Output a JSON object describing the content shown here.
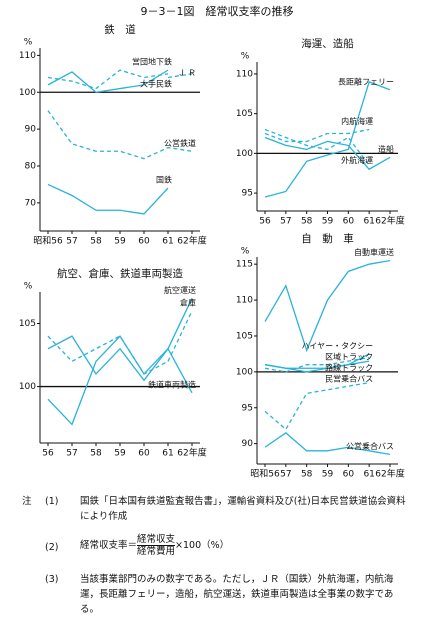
{
  "figure_title": "9－3－1図　経常収支率の推移",
  "chart_data": [
    {
      "type": "line",
      "title": "鉄　道",
      "y_unit": "%",
      "categories": [
        "昭和56",
        "57",
        "58",
        "59",
        "60",
        "61",
        "62年度"
      ],
      "ylim": [
        64,
        112
      ],
      "yticks": [
        70,
        80,
        90,
        100,
        110
      ],
      "hline": 100,
      "series": [
        {
          "name": "営団地下鉄",
          "color": "#29b3d8",
          "dash": false,
          "values": [
            102,
            105.5,
            100,
            101,
            102,
            106,
            null
          ]
        },
        {
          "name": "Ｊ Ｒ",
          "color": "#29b3d8",
          "dash": true,
          "values": [
            null,
            null,
            null,
            null,
            null,
            104,
            105
          ]
        },
        {
          "name": "大手民鉄",
          "color": "#29b3d8",
          "dash": true,
          "values": [
            104,
            103,
            101,
            106,
            104,
            105,
            null
          ]
        },
        {
          "name": "公営鉄道",
          "color": "#29b3d8",
          "dash": true,
          "values": [
            95,
            86,
            84,
            84,
            82,
            85,
            84
          ]
        },
        {
          "name": "国鉄",
          "color": "#29b3d8",
          "dash": false,
          "values": [
            75,
            72,
            68,
            68,
            67,
            74,
            null
          ]
        }
      ]
    },
    {
      "type": "line",
      "title": "海運、造船",
      "y_unit": "%",
      "categories": [
        "56",
        "57",
        "58",
        "59",
        "60",
        "61",
        "62年度"
      ],
      "ylim": [
        93.5,
        111.5
      ],
      "yticks": [
        95,
        100,
        105,
        110
      ],
      "hline": 100,
      "series": [
        {
          "name": "長距離フェリー",
          "color": "#29b3d8",
          "dash": false,
          "values": [
            94.5,
            95.2,
            99,
            99.8,
            100.5,
            109,
            108
          ]
        },
        {
          "name": "内航海運",
          "color": "#29b3d8",
          "dash": true,
          "values": [
            102.5,
            101.5,
            101.5,
            102.5,
            102.5,
            103,
            null
          ]
        },
        {
          "name": "外航海運",
          "color": "#29b3d8",
          "dash": true,
          "values": [
            103,
            102,
            101,
            100.5,
            102,
            98.5,
            null
          ]
        },
        {
          "name": "造船",
          "color": "#29b3d8",
          "dash": false,
          "values": [
            102,
            101,
            100.5,
            101.5,
            101,
            98,
            99.5
          ]
        }
      ]
    },
    {
      "type": "line",
      "title": "航空、倉庫、鉄道車両製造",
      "y_unit": "%",
      "categories": [
        "56",
        "57",
        "58",
        "59",
        "60",
        "61",
        "62年度"
      ],
      "ylim": [
        96,
        107.5
      ],
      "yticks": [
        100,
        105
      ],
      "hline": 100,
      "series": [
        {
          "name": "航空運送",
          "color": "#29b3d8",
          "dash": false,
          "values": [
            103,
            104,
            101,
            103,
            100.5,
            103,
            107
          ]
        },
        {
          "name": "倉庫",
          "color": "#29b3d8",
          "dash": true,
          "values": [
            104,
            102,
            103,
            104,
            101,
            102,
            106
          ]
        },
        {
          "name": "鉄道車両製造",
          "color": "#29b3d8",
          "dash": false,
          "values": [
            99,
            97,
            102,
            104,
            101,
            103,
            99.5
          ]
        }
      ]
    },
    {
      "type": "line",
      "title": "自　動　車",
      "y_unit": "%",
      "categories": [
        "昭和56",
        "57",
        "58",
        "59",
        "60",
        "61",
        "62年度"
      ],
      "ylim": [
        88,
        116
      ],
      "yticks": [
        90,
        95,
        100,
        105,
        110,
        115
      ],
      "hline": 100,
      "series": [
        {
          "name": "自動車運送",
          "color": "#29b3d8",
          "dash": false,
          "values": [
            107,
            112,
            103,
            110,
            114,
            115,
            115.5
          ]
        },
        {
          "name": "ハイヤー・タクシー",
          "color": "#29b3d8",
          "dash": false,
          "values": [
            101,
            100.5,
            100,
            100.5,
            101,
            102.5,
            null
          ]
        },
        {
          "name": "区域トラック",
          "color": "#29b3d8",
          "dash": true,
          "values": [
            100.5,
            100,
            101,
            101,
            101.5,
            102,
            null
          ]
        },
        {
          "name": "路線トラック",
          "color": "#29b3d8",
          "dash": false,
          "values": [
            101,
            100.5,
            100.5,
            100.5,
            101,
            101.5,
            null
          ]
        },
        {
          "name": "民営乗合バス",
          "color": "#29b3d8",
          "dash": true,
          "values": [
            94.5,
            92,
            97,
            97.5,
            98,
            98.5,
            null
          ]
        },
        {
          "name": "公営乗合バス",
          "color": "#29b3d8",
          "dash": false,
          "values": [
            89.5,
            91.5,
            89,
            89,
            89.5,
            89,
            88.5
          ]
        }
      ]
    }
  ],
  "notes": {
    "label": "注",
    "items": [
      {
        "num": "(1)",
        "text": "国鉄「日本国有鉄道監査報告書」，運輸省資料及び(社)日本民営鉄道協会資料により作成"
      },
      {
        "num": "(2)",
        "lhs": "経常収支率＝",
        "numerator": "経常収支",
        "denominator": "経常費用",
        "rhs": "×100（%）"
      },
      {
        "num": "(3)",
        "text": "当該事業部門のみの数字である。ただし，ＪＲ（国鉄）外航海運，内航海運，長距離フェリー，造船，航空運送，鉄道車両製造は全事業の数字である。"
      }
    ]
  }
}
